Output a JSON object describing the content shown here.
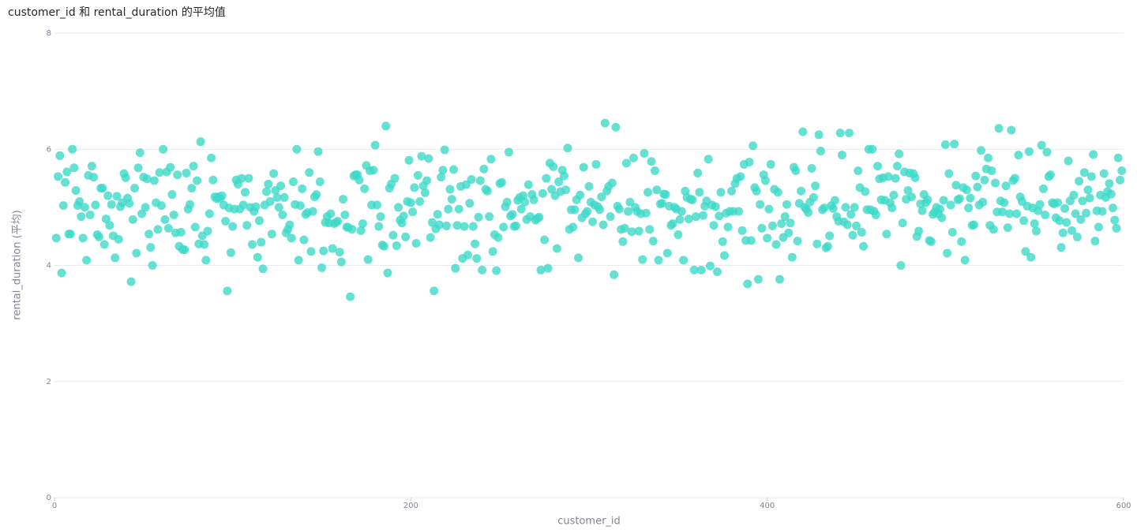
{
  "chart_data": {
    "type": "scatter",
    "title": "customer_id 和 rental_duration 的平均值",
    "x_label": "customer_id",
    "y_label": "rental_duration (平均)",
    "color": "#3dd9c8",
    "grid": true,
    "xlim": [
      0,
      600
    ],
    "xticks": [
      0,
      200,
      400,
      600
    ],
    "ylim": [
      0,
      8
    ],
    "yticks": [
      0,
      2,
      4,
      6,
      8
    ],
    "x": [
      1,
      2,
      3,
      4,
      5,
      6,
      7,
      8,
      9,
      10,
      11,
      12,
      13,
      14,
      15,
      16,
      17,
      18,
      19,
      20,
      21,
      22,
      23,
      24,
      25,
      26,
      27,
      28,
      29,
      30,
      31,
      32,
      33,
      34,
      35,
      36,
      37,
      38,
      39,
      40,
      41,
      42,
      43,
      44,
      45,
      46,
      47,
      48,
      49,
      50,
      51,
      52,
      53,
      54,
      55,
      56,
      57,
      58,
      59,
      60,
      61,
      62,
      63,
      64,
      65,
      66,
      67,
      68,
      69,
      70,
      71,
      72,
      73,
      74,
      75,
      76,
      77,
      78,
      79,
      80,
      81,
      82,
      83,
      84,
      85,
      86,
      87,
      88,
      89,
      90,
      91,
      92,
      93,
      94,
      95,
      96,
      97,
      98,
      99,
      100,
      101,
      102,
      103,
      104,
      105,
      106,
      107,
      108,
      109,
      110,
      111,
      112,
      113,
      114,
      115,
      116,
      117,
      118,
      119,
      120,
      121,
      122,
      123,
      124,
      125,
      126,
      127,
      128,
      129,
      130,
      131,
      132,
      133,
      134,
      135,
      136,
      137,
      138,
      139,
      140,
      141,
      142,
      143,
      144,
      145,
      146,
      147,
      148,
      149,
      150,
      151,
      152,
      153,
      154,
      155,
      156,
      157,
      158,
      159,
      160,
      161,
      162,
      163,
      164,
      165,
      166,
      167,
      168,
      169,
      170,
      171,
      172,
      173,
      174,
      175,
      176,
      177,
      178,
      179,
      180,
      181,
      182,
      183,
      184,
      185,
      186,
      187,
      188,
      189,
      190,
      191,
      192,
      193,
      194,
      195,
      196,
      197,
      198,
      199,
      200,
      201,
      202,
      203,
      204,
      205,
      206,
      207,
      208,
      209,
      210,
      211,
      212,
      213,
      214,
      215,
      216,
      217,
      218,
      219,
      220,
      221,
      222,
      223,
      224,
      225,
      226,
      227,
      228,
      229,
      230,
      231,
      232,
      233,
      234,
      235,
      236,
      237,
      238,
      239,
      240,
      241,
      242,
      243,
      244,
      245,
      246,
      247,
      248,
      249,
      250,
      251,
      252,
      253,
      254,
      255,
      256,
      257,
      258,
      259,
      260,
      261,
      262,
      263,
      264,
      265,
      266,
      267,
      268,
      269,
      270,
      271,
      272,
      273,
      274,
      275,
      276,
      277,
      278,
      279,
      280,
      281,
      282,
      283,
      284,
      285,
      286,
      287,
      288,
      289,
      290,
      291,
      292,
      293,
      294,
      295,
      296,
      297,
      298,
      299,
      300,
      301,
      302,
      303,
      304,
      305,
      306,
      307,
      308,
      309,
      310,
      311,
      312,
      313,
      314,
      315,
      316,
      317,
      318,
      319,
      320,
      321,
      322,
      323,
      324,
      325,
      326,
      327,
      328,
      329,
      330,
      331,
      332,
      333,
      334,
      335,
      336,
      337,
      338,
      339,
      340,
      341,
      342,
      343,
      344,
      345,
      346,
      347,
      348,
      349,
      350,
      351,
      352,
      353,
      354,
      355,
      356,
      357,
      358,
      359,
      360,
      361,
      362,
      363,
      364,
      365,
      366,
      367,
      368,
      369,
      370,
      371,
      372,
      373,
      374,
      375,
      376,
      377,
      378,
      379,
      380,
      381,
      382,
      383,
      384,
      385,
      386,
      387,
      388,
      389,
      390,
      391,
      392,
      393,
      394,
      395,
      396,
      397,
      398,
      399,
      400,
      401,
      402,
      403,
      404,
      405,
      406,
      407,
      408,
      409,
      410,
      411,
      412,
      413,
      414,
      415,
      416,
      417,
      418,
      419,
      420,
      421,
      422,
      423,
      424,
      425,
      426,
      427,
      428,
      429,
      430,
      431,
      432,
      433,
      434,
      435,
      436,
      437,
      438,
      439,
      440,
      441,
      442,
      443,
      444,
      445,
      446,
      447,
      448,
      449,
      450,
      451,
      452,
      453,
      454,
      455,
      456,
      457,
      458,
      459,
      460,
      461,
      462,
      463,
      464,
      465,
      466,
      467,
      468,
      469,
      470,
      471,
      472,
      473,
      474,
      475,
      476,
      477,
      478,
      479,
      480,
      481,
      482,
      483,
      484,
      485,
      486,
      487,
      488,
      489,
      490,
      491,
      492,
      493,
      494,
      495,
      496,
      497,
      498,
      499,
      500,
      501,
      502,
      503,
      504,
      505,
      506,
      507,
      508,
      509,
      510,
      511,
      512,
      513,
      514,
      515,
      516,
      517,
      518,
      519,
      520,
      521,
      522,
      523,
      524,
      525,
      526,
      527,
      528,
      529,
      530,
      531,
      532,
      533,
      534,
      535,
      536,
      537,
      538,
      539,
      540,
      541,
      542,
      543,
      544,
      545,
      546,
      547,
      548,
      549,
      550,
      551,
      552,
      553,
      554,
      555,
      556,
      557,
      558,
      559,
      560,
      561,
      562,
      563,
      564,
      565,
      566,
      567,
      568,
      569,
      570,
      571,
      572,
      573,
      574,
      575,
      576,
      577,
      578,
      579,
      580,
      581,
      582,
      583,
      584,
      585,
      586,
      587,
      588,
      589,
      590,
      591,
      592,
      593,
      594,
      595,
      596,
      597,
      598,
      599
    ],
    "values": [
      4.47,
      5.53,
      5.89,
      3.87,
      5.03,
      5.43,
      5.61,
      4.54,
      4.54,
      6.0,
      5.68,
      5.29,
      5.03,
      5.1,
      4.84,
      4.47,
      5.0,
      4.09,
      5.55,
      4.87,
      5.71,
      5.52,
      5.04,
      4.53,
      4.49,
      5.33,
      5.33,
      4.36,
      4.8,
      5.2,
      4.69,
      5.05,
      4.51,
      4.13,
      5.19,
      4.45,
      5.01,
      5.08,
      5.58,
      5.51,
      5.16,
      5.07,
      3.72,
      4.79,
      5.33,
      4.21,
      5.68,
      5.94,
      4.89,
      5.52,
      5.0,
      5.49,
      4.54,
      4.31,
      4.0,
      5.46,
      5.08,
      4.62,
      5.6,
      5.03,
      6.0,
      4.79,
      5.61,
      4.64,
      5.69,
      5.22,
      4.87,
      4.56,
      5.56,
      4.33,
      4.57,
      4.27,
      4.27,
      5.59,
      4.97,
      5.05,
      5.33,
      5.71,
      4.66,
      5.46,
      4.37,
      6.13,
      4.51,
      4.36,
      4.09,
      4.59,
      4.89,
      5.85,
      5.47,
      5.18,
      5.15,
      5.18,
      5.15,
      5.2,
      5.04,
      4.76,
      3.56,
      4.99,
      4.22,
      4.67,
      4.97,
      5.47,
      5.4,
      4.97,
      5.5,
      5.04,
      5.26,
      4.69,
      5.5,
      5.0,
      4.36,
      4.93,
      5.01,
      4.14,
      4.77,
      4.4,
      3.94,
      5.04,
      5.27,
      5.4,
      5.1,
      4.54,
      5.58,
      5.29,
      5.17,
      5.0,
      5.37,
      4.87,
      5.17,
      4.56,
      4.62,
      4.7,
      4.47,
      5.44,
      5.05,
      6.0,
      4.09,
      5.03,
      5.32,
      4.44,
      4.88,
      4.91,
      5.6,
      4.24,
      4.93,
      5.18,
      5.22,
      5.96,
      5.44,
      3.96,
      4.25,
      4.74,
      4.84,
      4.73,
      4.89,
      4.29,
      4.72,
      4.74,
      4.76,
      4.23,
      4.06,
      5.14,
      4.87,
      4.66,
      4.65,
      3.46,
      4.62,
      5.54,
      5.56,
      5.56,
      5.47,
      4.6,
      4.72,
      5.32,
      5.72,
      4.1,
      5.63,
      5.04,
      5.64,
      6.07,
      5.04,
      4.67,
      4.84,
      4.35,
      4.33,
      6.4,
      3.87,
      5.33,
      5.4,
      4.52,
      5.5,
      4.34,
      5.0,
      4.78,
      4.73,
      4.85,
      4.49,
      5.1,
      5.81,
      5.08,
      4.92,
      5.34,
      4.38,
      5.55,
      5.1,
      5.88,
      5.37,
      5.25,
      5.46,
      5.84,
      4.48,
      4.74,
      3.56,
      4.63,
      4.88,
      4.7,
      5.52,
      5.64,
      5.99,
      4.68,
      4.97,
      5.31,
      5.14,
      5.65,
      3.95,
      4.69,
      4.97,
      5.36,
      4.12,
      4.67,
      5.39,
      4.18,
      5.07,
      5.48,
      4.67,
      4.37,
      4.12,
      4.83,
      5.46,
      3.92,
      5.66,
      5.31,
      5.28,
      4.84,
      5.83,
      4.24,
      4.53,
      3.91,
      4.48,
      5.41,
      5.43,
      4.66,
      5.01,
      5.09,
      5.95,
      4.85,
      4.88,
      4.67,
      4.68,
      5.12,
      5.17,
      4.97,
      5.2,
      5.09,
      4.79,
      5.39,
      4.84,
      5.22,
      5.13,
      4.78,
      4.81,
      4.83,
      3.92,
      5.24,
      4.44,
      5.5,
      3.95,
      5.76,
      5.31,
      5.7,
      5.2,
      4.29,
      5.44,
      5.27,
      5.64,
      5.54,
      5.3,
      6.02,
      4.62,
      4.96,
      4.66,
      4.96,
      5.13,
      4.13,
      5.21,
      4.82,
      5.69,
      4.89,
      4.93,
      5.36,
      5.09,
      4.75,
      5.04,
      5.74,
      5.01,
      4.96,
      5.18,
      4.7,
      6.45,
      5.28,
      5.36,
      4.84,
      5.42,
      3.84,
      6.38,
      5.02,
      4.97,
      4.62,
      4.41,
      4.64,
      5.76,
      4.93,
      5.09,
      4.58,
      5.85,
      5.0,
      4.93,
      4.59,
      4.89,
      4.1,
      5.93,
      4.9,
      5.26,
      4.62,
      5.79,
      4.42,
      5.63,
      5.3,
      4.09,
      5.06,
      5.07,
      5.23,
      5.22,
      4.21,
      5.02,
      4.69,
      4.72,
      5.0,
      4.97,
      4.53,
      4.79,
      4.93,
      4.09,
      5.28,
      5.17,
      4.8,
      5.14,
      5.13,
      3.92,
      4.84,
      5.59,
      5.26,
      3.92,
      4.86,
      5.02,
      5.11,
      5.83,
      3.99,
      5.04,
      4.69,
      5.01,
      3.89,
      4.85,
      5.26,
      4.41,
      4.17,
      4.9,
      4.66,
      4.93,
      5.28,
      4.93,
      5.41,
      5.5,
      4.93,
      5.53,
      4.6,
      5.74,
      4.43,
      3.68,
      5.78,
      4.43,
      6.06,
      5.34,
      5.28,
      3.76,
      5.05,
      4.64,
      5.56,
      5.46,
      4.47,
      4.97,
      5.74,
      4.68,
      5.31,
      4.36,
      5.26,
      3.76,
      4.72,
      4.48,
      4.84,
      5.05,
      4.56,
      4.73,
      4.14,
      5.69,
      5.63,
      4.42,
      5.07,
      5.28,
      6.3,
      5.0,
      4.97,
      4.91,
      5.09,
      5.67,
      5.17,
      5.37,
      4.37,
      6.25,
      5.97,
      4.96,
      4.99,
      4.3,
      4.33,
      4.51,
      5.03,
      4.98,
      5.12,
      4.84,
      4.76,
      6.28,
      5.9,
      4.75,
      5.0,
      4.7,
      6.28,
      4.88,
      4.52,
      5.0,
      4.68,
      5.63,
      5.34,
      4.57,
      4.33,
      5.27,
      4.96,
      6.0,
      4.96,
      6.0,
      4.93,
      4.87,
      5.71,
      5.49,
      5.13,
      5.51,
      5.12,
      4.54,
      5.53,
      5.08,
      4.99,
      5.21,
      5.5,
      5.71,
      5.92,
      4.0,
      4.73,
      5.61,
      5.14,
      5.29,
      5.59,
      5.18,
      5.58,
      5.51,
      4.5,
      4.59,
      5.06,
      4.94,
      5.22,
      5.08,
      5.13,
      4.43,
      4.41,
      4.88,
      4.92,
      5.0,
      4.89,
      4.97,
      4.82,
      5.12,
      6.08,
      4.21,
      5.58,
      5.04,
      4.57,
      6.09,
      5.38,
      5.13,
      5.15,
      4.41,
      5.34,
      4.09,
      5.3,
      4.99,
      5.16,
      4.69,
      4.7,
      5.54,
      5.35,
      5.04,
      5.98,
      5.09,
      5.47,
      5.66,
      5.85,
      4.69,
      5.63,
      4.62,
      5.42,
      4.92,
      6.36,
      5.11,
      4.92,
      5.08,
      5.37,
      4.65,
      4.89,
      6.33,
      5.46,
      5.5,
      4.89,
      5.9,
      5.18,
      5.1,
      4.77,
      4.24,
      5.02,
      5.96,
      4.14,
      4.99,
      4.72,
      4.59,
      4.94,
      5.05,
      6.07,
      5.32,
      4.87,
      5.95,
      5.53,
      5.56,
      5.08,
      5.06,
      4.82,
      5.08,
      4.77,
      4.31,
      4.56,
      4.98,
      4.74,
      5.8,
      5.11,
      4.6,
      5.21,
      4.89,
      4.49,
      5.45,
      4.79,
      5.11,
      5.6,
      4.9,
      5.3,
      5.16,
      5.53,
      5.91,
      4.42,
      4.94,
      4.66,
      5.21,
      4.93,
      5.58,
      5.17,
      5.27,
      5.41,
      5.23,
      4.99,
      4.78,
      4.64,
      5.85,
      5.47,
      5.63
    ]
  }
}
